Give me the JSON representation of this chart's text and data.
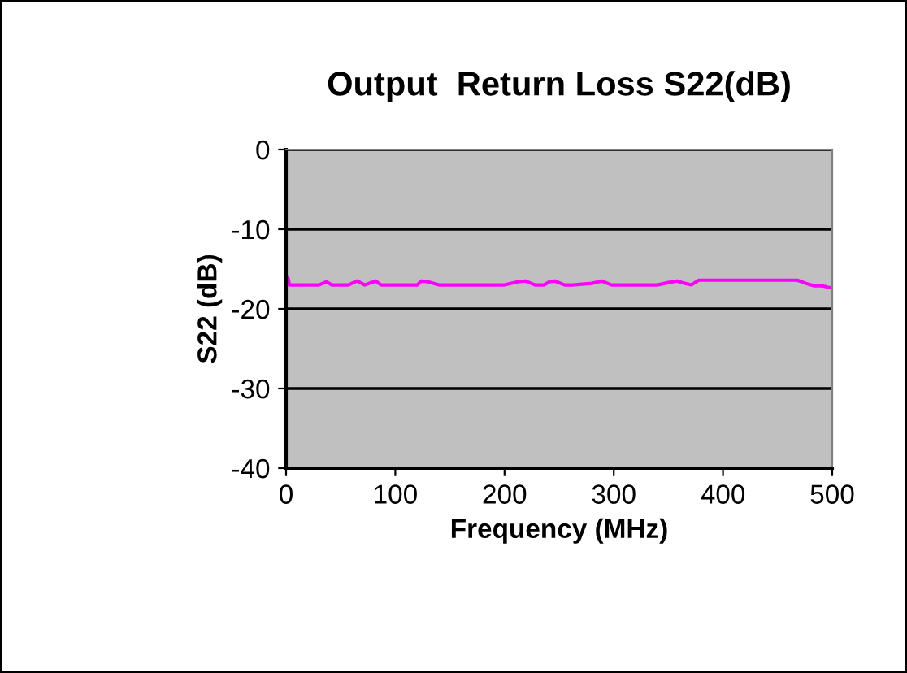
{
  "chart_data": {
    "type": "line",
    "title": "Output  Return Loss S22(dB)",
    "xlabel": "Frequency (MHz)",
    "ylabel": "S22 (dB)",
    "x": [
      0,
      2,
      3,
      30,
      37,
      42,
      57,
      65,
      72,
      82,
      87,
      120,
      124,
      130,
      140,
      200,
      212,
      219,
      228,
      236,
      241,
      246,
      255,
      262,
      280,
      289,
      298,
      310,
      340,
      350,
      358,
      365,
      371,
      378,
      400,
      440,
      468,
      476,
      483,
      490,
      500
    ],
    "series": [
      {
        "color": "#ff00ff",
        "values": [
          -15.8,
          -16.2,
          -17.0,
          -17.0,
          -16.6,
          -17.0,
          -17.0,
          -16.5,
          -17.0,
          -16.5,
          -17.0,
          -17.0,
          -16.5,
          -16.6,
          -17.0,
          -17.0,
          -16.6,
          -16.5,
          -17.0,
          -17.0,
          -16.6,
          -16.5,
          -17.0,
          -17.0,
          -16.8,
          -16.5,
          -17.0,
          -17.0,
          -17.0,
          -16.7,
          -16.5,
          -16.8,
          -17.0,
          -16.4,
          -16.4,
          -16.4,
          -16.4,
          -16.8,
          -17.1,
          -17.1,
          -17.4
        ]
      }
    ],
    "xlim": [
      0,
      500
    ],
    "ylim": [
      -40,
      0
    ],
    "xticks": [
      0,
      100,
      200,
      300,
      400,
      500
    ],
    "yticks": [
      -40,
      -30,
      -20,
      -10,
      0
    ],
    "grid": "y",
    "legend": false,
    "marker": "none",
    "line_style": "solid"
  }
}
